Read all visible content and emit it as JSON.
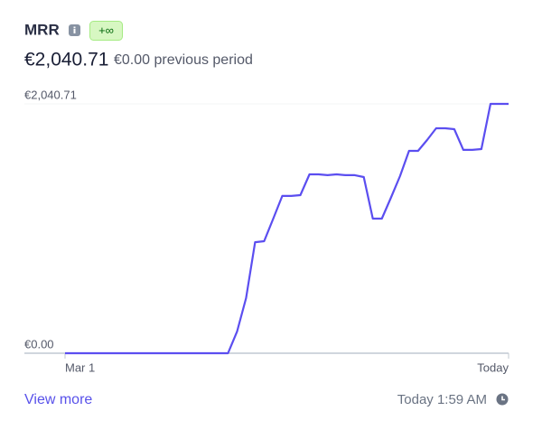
{
  "header": {
    "title": "MRR",
    "badge": "+∞",
    "value": "€2,040.71",
    "previous": "€0.00 previous period"
  },
  "chart_data": {
    "type": "line",
    "color": "#5b4ef0",
    "categories": [
      "Mar 1",
      null,
      null,
      null,
      null,
      null,
      null,
      null,
      null,
      null,
      null,
      null,
      null,
      null,
      null,
      null,
      null,
      null,
      null,
      null,
      null,
      null,
      null,
      null,
      null,
      null,
      null,
      null,
      null,
      null,
      null,
      null,
      null,
      null,
      null,
      null,
      null,
      null,
      null,
      null,
      null,
      null,
      null,
      null,
      null,
      null,
      null,
      null,
      null,
      "Today"
    ],
    "values": [
      0,
      0,
      0,
      0,
      0,
      0,
      0,
      0,
      0,
      0,
      0,
      0,
      0,
      0,
      0,
      0,
      0,
      0,
      0,
      177,
      451,
      909,
      917,
      1102,
      1287,
      1287,
      1294,
      1464,
      1464,
      1457,
      1464,
      1457,
      1457,
      1442,
      1102,
      1102,
      1272,
      1449,
      1656,
      1656,
      1745,
      1841,
      1841,
      1834,
      1664,
      1664,
      1671,
      2040.71,
      2040.71,
      2040.71
    ],
    "ylim": [
      0,
      2040.71
    ],
    "yticks": [
      {
        "value": 0,
        "label": "€0.00"
      },
      {
        "value": 2040.71,
        "label": "€2,040.71"
      }
    ]
  },
  "footer": {
    "link": "View more",
    "updated": "Today 1:59 AM"
  }
}
